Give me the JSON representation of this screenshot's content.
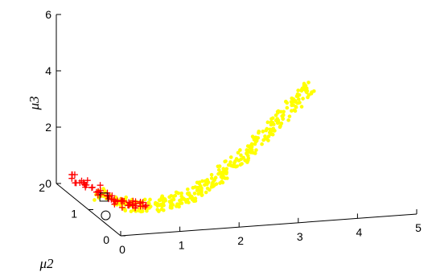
{
  "chart_data": {
    "type": "scatter",
    "projection": "3d",
    "title": "",
    "xlabel": "",
    "ylabel": "μ2",
    "zlabel": "μ3",
    "x_ticks": [
      "0",
      "1",
      "2",
      "3",
      "4",
      "5"
    ],
    "y_ticks": [
      "0",
      "1",
      "2"
    ],
    "z_ticks": [
      "0",
      "2",
      "4",
      "6"
    ],
    "xlim": [
      0,
      5
    ],
    "ylim": [
      0,
      2
    ],
    "zlim": [
      0,
      6
    ],
    "grid": false,
    "series": [
      {
        "marker": "dot",
        "color": "#ffff00",
        "points": [
          [
            0.4,
            1.35,
            0.15
          ],
          [
            0.5,
            1.2,
            0.1
          ],
          [
            0.6,
            1.1,
            0.05
          ],
          [
            0.7,
            1.0,
            0.05
          ],
          [
            0.8,
            0.95,
            0.05
          ],
          [
            0.9,
            0.9,
            0.1
          ],
          [
            1.0,
            0.85,
            0.15
          ],
          [
            1.1,
            0.8,
            0.2
          ],
          [
            1.2,
            0.75,
            0.3
          ],
          [
            1.3,
            0.7,
            0.4
          ],
          [
            1.4,
            0.65,
            0.5
          ],
          [
            1.5,
            0.62,
            0.65
          ],
          [
            1.6,
            0.58,
            0.8
          ],
          [
            1.7,
            0.55,
            0.95
          ],
          [
            1.8,
            0.52,
            1.1
          ],
          [
            1.9,
            0.5,
            1.3
          ],
          [
            2.0,
            0.48,
            1.5
          ],
          [
            2.1,
            0.45,
            1.7
          ],
          [
            2.2,
            0.43,
            1.9
          ],
          [
            2.3,
            0.4,
            2.1
          ],
          [
            2.4,
            0.38,
            2.35
          ],
          [
            2.5,
            0.36,
            2.6
          ],
          [
            2.6,
            0.34,
            2.85
          ],
          [
            2.7,
            0.32,
            3.1
          ],
          [
            2.8,
            0.3,
            3.35
          ],
          [
            2.9,
            0.28,
            3.6
          ],
          [
            3.0,
            0.26,
            3.85
          ],
          [
            3.1,
            0.25,
            4.1
          ],
          [
            3.2,
            0.24,
            4.3
          ],
          [
            3.3,
            0.22,
            4.5
          ]
        ]
      },
      {
        "marker": "plus",
        "color": "#ff0000",
        "points": [
          [
            0.2,
            1.9,
            0.35
          ],
          [
            0.25,
            1.8,
            0.3
          ],
          [
            0.3,
            1.7,
            0.25
          ],
          [
            0.35,
            1.6,
            0.2
          ],
          [
            0.4,
            1.5,
            0.2
          ],
          [
            0.45,
            1.4,
            0.15
          ],
          [
            0.5,
            1.3,
            0.1
          ],
          [
            0.55,
            1.25,
            0.05
          ],
          [
            0.6,
            1.2,
            0.05
          ],
          [
            0.65,
            1.15,
            0.0
          ],
          [
            0.7,
            1.1,
            0.0
          ],
          [
            0.75,
            1.05,
            0.0
          ],
          [
            0.8,
            1.0,
            0.05
          ],
          [
            0.85,
            1.0,
            0.05
          ],
          [
            0.9,
            0.95,
            0.1
          ]
        ]
      },
      {
        "marker": "square",
        "color": "#000000",
        "points": [
          [
            0.45,
            1.35,
            0.05
          ]
        ]
      },
      {
        "marker": "circle",
        "color": "#000000",
        "points": [
          [
            0.4,
            1.2,
            -0.45
          ]
        ]
      }
    ]
  }
}
